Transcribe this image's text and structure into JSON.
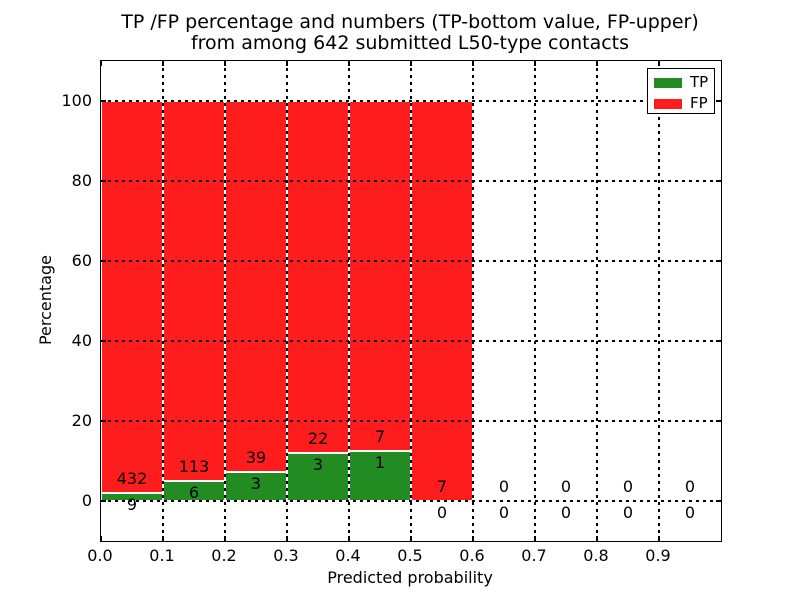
{
  "figure": {
    "title_line1": "TP /FP percentage and numbers (TP-bottom value, FP-upper)",
    "title_line2": "from among 642 submitted L50-type contacts",
    "xlabel": "Predicted probability",
    "ylabel": "Percentage",
    "background": "#ffffff"
  },
  "legend": {
    "items": [
      {
        "label": "TP",
        "color": "#228b22"
      },
      {
        "label": "FP",
        "color": "#ff1c1c"
      }
    ]
  },
  "chart_data": {
    "type": "bar",
    "subtype": "stacked-percentage-histogram",
    "title": "TP /FP percentage and numbers (TP-bottom value, FP-upper) from among 642 submitted L50-type contacts",
    "xlabel": "Predicted probability",
    "ylabel": "Percentage",
    "total_contacts": 642,
    "bin_width": 0.1,
    "bin_starts": [
      0.0,
      0.1,
      0.2,
      0.3,
      0.4,
      0.5,
      0.6,
      0.7,
      0.8,
      0.9
    ],
    "xticks": [
      "0.0",
      "0.1",
      "0.2",
      "0.3",
      "0.4",
      "0.5",
      "0.6",
      "0.7",
      "0.8",
      "0.9"
    ],
    "xtick_values": [
      0.0,
      0.1,
      0.2,
      0.3,
      0.4,
      0.5,
      0.6,
      0.7,
      0.8,
      0.9
    ],
    "yticks": [
      "0",
      "20",
      "40",
      "60",
      "80",
      "100"
    ],
    "ytick_values": [
      0,
      20,
      40,
      60,
      80,
      100
    ],
    "xlim": [
      0,
      1
    ],
    "ylim": [
      -10,
      110
    ],
    "grid": "dotted",
    "edge_color": "#ffffff",
    "series": [
      {
        "name": "TP",
        "color": "#228b22",
        "counts": [
          9,
          6,
          3,
          3,
          1,
          0,
          0,
          0,
          0,
          0
        ],
        "percent": [
          2.0408,
          5.042,
          7.1429,
          12.0,
          12.5,
          0,
          0,
          0,
          0,
          0
        ]
      },
      {
        "name": "FP",
        "color": "#ff1c1c",
        "counts": [
          432,
          113,
          39,
          22,
          7,
          7,
          0,
          0,
          0,
          0
        ],
        "percent": [
          97.9592,
          94.958,
          92.8571,
          88.0,
          87.5,
          100,
          0,
          0,
          0,
          0
        ]
      }
    ],
    "bar_labels": {
      "fp_upper": [
        "432",
        "113",
        "39",
        "22",
        "7",
        "7",
        "0",
        "0",
        "0",
        "0"
      ],
      "tp_bottom": [
        "9",
        "6",
        "3",
        "3",
        "1",
        "0",
        "0",
        "0",
        "0",
        "0"
      ]
    }
  }
}
